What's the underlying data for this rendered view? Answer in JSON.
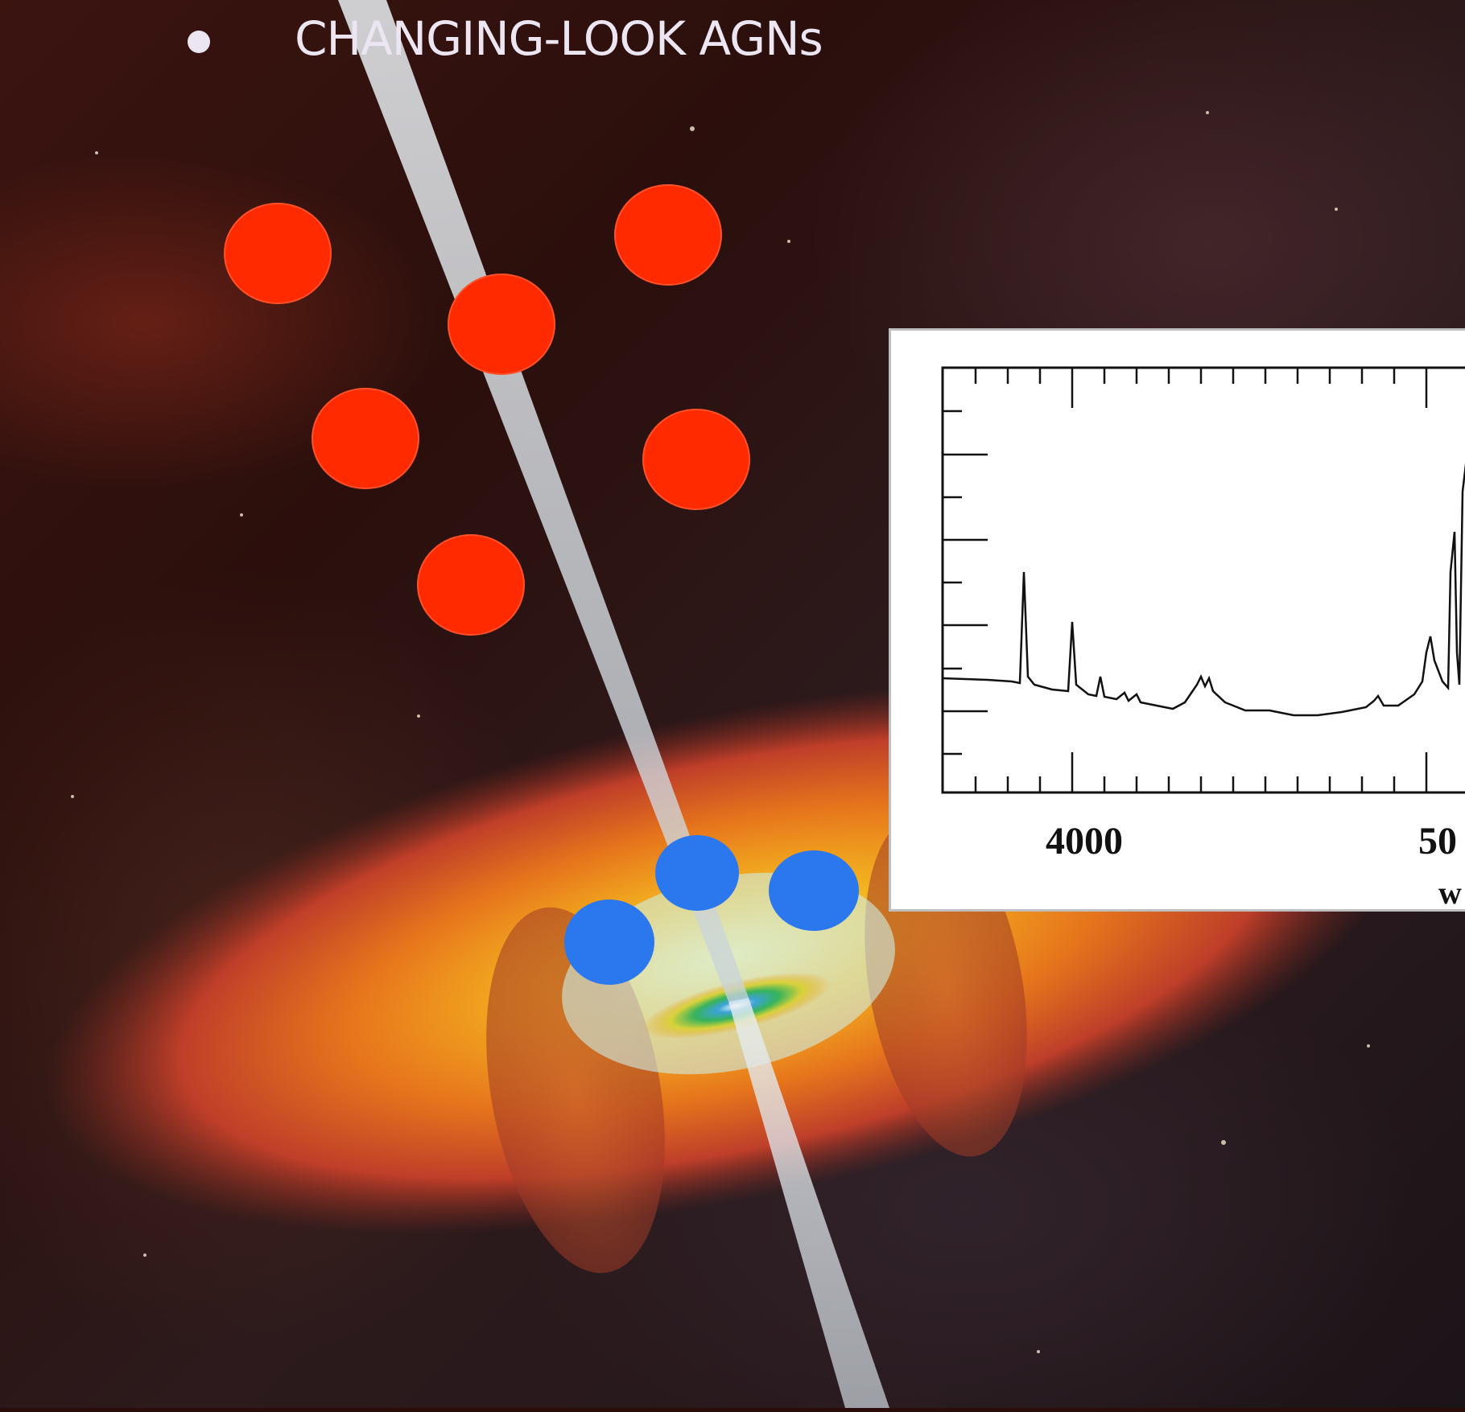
{
  "slide": {
    "title": "CHANGING-LOOK AGNs"
  },
  "colors": {
    "red_dot": "#ff2a00",
    "blue_dot": "#2b78ee"
  },
  "inset_chart": {
    "tick_labels": [
      "4000",
      "50",
      "w"
    ]
  }
}
